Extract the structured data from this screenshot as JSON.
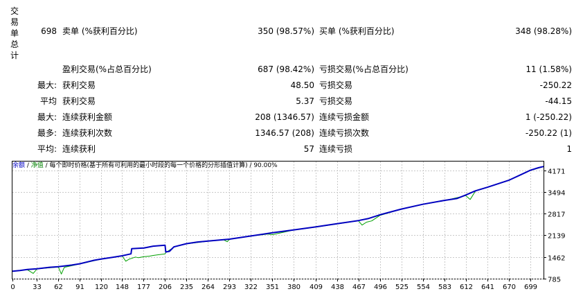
{
  "side_label": [
    "交",
    "易",
    "单",
    "总",
    "计"
  ],
  "summary": {
    "count": "698",
    "sell_label": "卖单 (%获利百分比)",
    "sell_value": "350 (98.57%)",
    "buy_label": "买单 (%获利百分比)",
    "buy_value": "348 (98.28%)"
  },
  "rows": [
    {
      "prefix": "",
      "label1": "盈利交易(%占总百分比)",
      "value1": "687 (98.42%)",
      "label2": "亏损交易(%占总百分比)",
      "value2": "11 (1.58%)"
    },
    {
      "prefix": "最大:",
      "label1": "获利交易",
      "value1": "48.50",
      "label2": "亏损交易",
      "value2": "-250.22"
    },
    {
      "prefix": "平均",
      "label1": "获利交易",
      "value1": "5.37",
      "label2": "亏损交易",
      "value2": "-44.15"
    },
    {
      "prefix": "最大:",
      "label1": "连续获利金额",
      "value1": "208 (1346.57)",
      "label2": "连续亏损金额",
      "value2": "1 (-250.22)"
    },
    {
      "prefix": "最多:",
      "label1": "连续获利次数",
      "value1": "1346.57 (208)",
      "label2": "连续亏损次数",
      "value2": "-250.22 (1)"
    },
    {
      "prefix": "平均:",
      "label1": "连续获利",
      "value1": "57",
      "label2": "连续亏损",
      "value2": "1"
    }
  ],
  "chart_legend": {
    "balance": "余额",
    "sep1": " / ",
    "equity": "净值",
    "rest": " / 每个即时价格(基于所有可利用的最小时段的每一个价格的分形插值计算) / 90.00%"
  },
  "chart_data": {
    "type": "line",
    "colors": {
      "balance": "#0000c0",
      "equity": "#00a000",
      "grid": "#c8c8c8"
    },
    "grid": true,
    "x_ticks": [
      0,
      33,
      62,
      91,
      120,
      148,
      177,
      206,
      235,
      264,
      293,
      322,
      351,
      380,
      409,
      438,
      467,
      496,
      525,
      554,
      583,
      612,
      641,
      670,
      699
    ],
    "y_ticks": [
      785,
      1462,
      2139,
      2817,
      3494,
      4171
    ],
    "xlim": [
      0,
      717
    ],
    "ylim": [
      785,
      4446
    ],
    "series": [
      {
        "name": "余额",
        "key": "balance",
        "points": [
          [
            0,
            1018
          ],
          [
            10,
            1040
          ],
          [
            20,
            1070
          ],
          [
            33,
            1095
          ],
          [
            50,
            1140
          ],
          [
            62,
            1160
          ],
          [
            80,
            1210
          ],
          [
            91,
            1250
          ],
          [
            110,
            1360
          ],
          [
            120,
            1400
          ],
          [
            135,
            1450
          ],
          [
            148,
            1500
          ],
          [
            160,
            1560
          ],
          [
            161,
            1720
          ],
          [
            175,
            1740
          ],
          [
            177,
            1740
          ],
          [
            190,
            1800
          ],
          [
            200,
            1820
          ],
          [
            206,
            1830
          ],
          [
            207,
            1620
          ],
          [
            212,
            1640
          ],
          [
            218,
            1780
          ],
          [
            235,
            1880
          ],
          [
            250,
            1930
          ],
          [
            264,
            1960
          ],
          [
            293,
            2020
          ],
          [
            322,
            2120
          ],
          [
            351,
            2220
          ],
          [
            380,
            2310
          ],
          [
            409,
            2400
          ],
          [
            438,
            2500
          ],
          [
            467,
            2600
          ],
          [
            480,
            2660
          ],
          [
            496,
            2780
          ],
          [
            525,
            2960
          ],
          [
            554,
            3110
          ],
          [
            583,
            3230
          ],
          [
            600,
            3290
          ],
          [
            612,
            3400
          ],
          [
            625,
            3530
          ],
          [
            641,
            3640
          ],
          [
            670,
            3860
          ],
          [
            685,
            4020
          ],
          [
            699,
            4170
          ],
          [
            710,
            4250
          ],
          [
            717,
            4290
          ]
        ]
      },
      {
        "name": "净值",
        "key": "equity",
        "points": [
          [
            0,
            1018
          ],
          [
            20,
            1065
          ],
          [
            28,
            950
          ],
          [
            33,
            1090
          ],
          [
            62,
            1150
          ],
          [
            66,
            930
          ],
          [
            70,
            1140
          ],
          [
            91,
            1245
          ],
          [
            120,
            1395
          ],
          [
            148,
            1498
          ],
          [
            153,
            1330
          ],
          [
            158,
            1400
          ],
          [
            161,
            1420
          ],
          [
            166,
            1460
          ],
          [
            170,
            1440
          ],
          [
            177,
            1470
          ],
          [
            185,
            1490
          ],
          [
            190,
            1510
          ],
          [
            196,
            1530
          ],
          [
            206,
            1560
          ],
          [
            207,
            1600
          ],
          [
            218,
            1770
          ],
          [
            235,
            1875
          ],
          [
            264,
            1955
          ],
          [
            285,
            2000
          ],
          [
            290,
            1940
          ],
          [
            293,
            2015
          ],
          [
            322,
            2115
          ],
          [
            345,
            2180
          ],
          [
            351,
            2160
          ],
          [
            380,
            2305
          ],
          [
            409,
            2395
          ],
          [
            438,
            2495
          ],
          [
            467,
            2595
          ],
          [
            472,
            2460
          ],
          [
            478,
            2550
          ],
          [
            485,
            2590
          ],
          [
            496,
            2760
          ],
          [
            525,
            2955
          ],
          [
            554,
            3105
          ],
          [
            583,
            3225
          ],
          [
            612,
            3380
          ],
          [
            618,
            3260
          ],
          [
            625,
            3520
          ],
          [
            641,
            3635
          ],
          [
            670,
            3855
          ],
          [
            699,
            4165
          ],
          [
            717,
            4285
          ]
        ]
      }
    ]
  }
}
